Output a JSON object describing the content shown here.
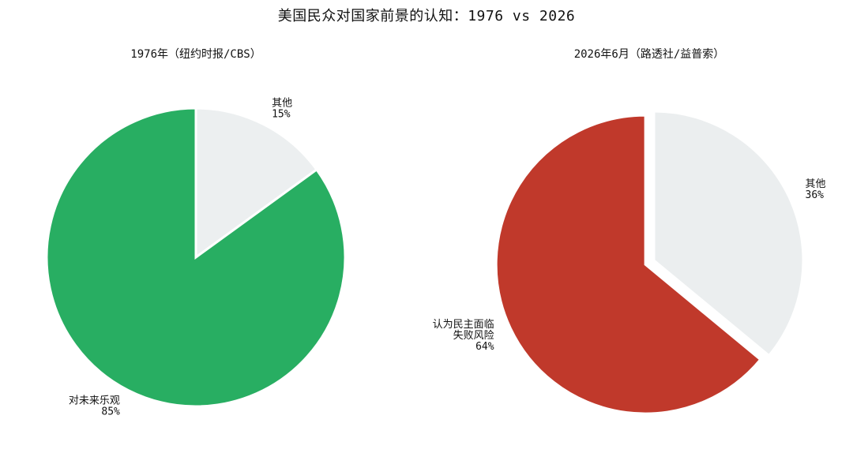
{
  "chart_data": {
    "title": "美国民众对国家前景的认知：1976 vs 2026",
    "charts": [
      {
        "type": "pie",
        "title": "1976年（纽约时报/CBS）",
        "slices": [
          {
            "name": "其他",
            "label_lines": [
              "其他"
            ],
            "value": 15,
            "pct": "15%",
            "color": "#ECEFF0",
            "explode": false
          },
          {
            "name": "对未来乐观",
            "label_lines": [
              "对未来乐观"
            ],
            "value": 85,
            "pct": "85%",
            "color": "#28AE62",
            "explode": false
          }
        ]
      },
      {
        "type": "pie",
        "title": "2026年6月（路透社/益普索）",
        "slices": [
          {
            "name": "其他",
            "label_lines": [
              "其他"
            ],
            "value": 36,
            "pct": "36%",
            "color": "#EBEEEF",
            "explode": false
          },
          {
            "name": "认为民主面临失败风险",
            "label_lines": [
              "认为民主面临",
              "失败风险"
            ],
            "value": 64,
            "pct": "64%",
            "color": "#C0392B",
            "explode": true
          }
        ]
      }
    ]
  }
}
